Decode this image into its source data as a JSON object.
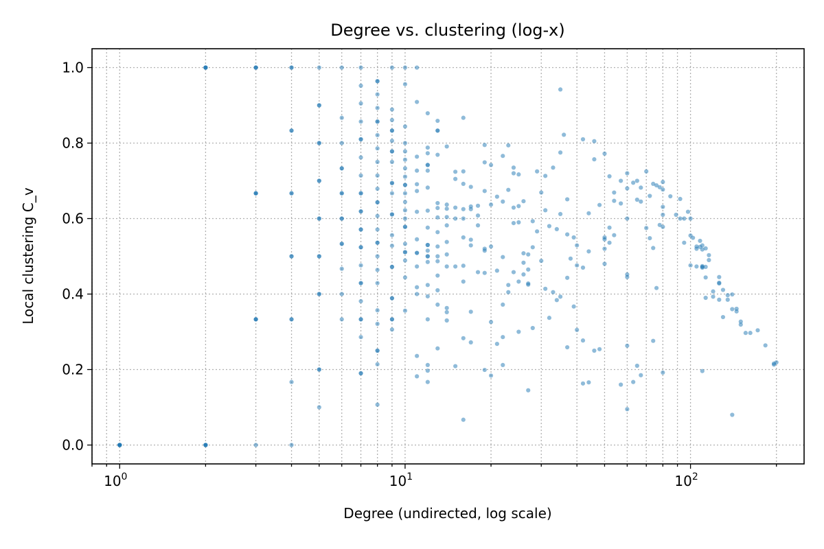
{
  "chart_data": {
    "type": "scatter",
    "title": "Degree vs. clustering (log-x)",
    "xlabel": "Degree (undirected, log scale)",
    "ylabel": "Local clustering C_v",
    "x_scale": "log",
    "xlim": [
      0.8,
      250
    ],
    "ylim": [
      -0.05,
      1.05
    ],
    "x_ticks": [
      {
        "base": "10",
        "exp": "0",
        "value": 1
      },
      {
        "base": "10",
        "exp": "1",
        "value": 10
      },
      {
        "base": "10",
        "exp": "2",
        "value": 100
      }
    ],
    "y_ticks": [
      "0.0",
      "0.2",
      "0.4",
      "0.6",
      "0.8",
      "1.0"
    ],
    "grid": true,
    "marker_color": "#1f77b4",
    "marker_alpha": 0.5,
    "points": [
      [
        1,
        0
      ],
      [
        1,
        0
      ],
      [
        1,
        0
      ],
      [
        1,
        0
      ],
      [
        1,
        0
      ],
      [
        1,
        0
      ],
      [
        2,
        0
      ],
      [
        2,
        0
      ],
      [
        2,
        0
      ],
      [
        2,
        0
      ],
      [
        2,
        1
      ],
      [
        2,
        1
      ],
      [
        2,
        1
      ],
      [
        2,
        1
      ],
      [
        3,
        0
      ],
      [
        3,
        0.333
      ],
      [
        3,
        0.333
      ],
      [
        3,
        0.333
      ],
      [
        3,
        0.667
      ],
      [
        3,
        0.667
      ],
      [
        3,
        0.667
      ],
      [
        3,
        1
      ],
      [
        3,
        1
      ],
      [
        3,
        1
      ],
      [
        4,
        0
      ],
      [
        4,
        0.167
      ],
      [
        4,
        0.333
      ],
      [
        4,
        0.333
      ],
      [
        4,
        0.5
      ],
      [
        4,
        0.5
      ],
      [
        4,
        0.667
      ],
      [
        4,
        0.667
      ],
      [
        4,
        0.833
      ],
      [
        4,
        0.833
      ],
      [
        4,
        1
      ],
      [
        4,
        1
      ],
      [
        5,
        0.1
      ],
      [
        5,
        0.2
      ],
      [
        5,
        0.2
      ],
      [
        5,
        0.4
      ],
      [
        5,
        0.4
      ],
      [
        5,
        0.5
      ],
      [
        5,
        0.5
      ],
      [
        5,
        0.6
      ],
      [
        5,
        0.6
      ],
      [
        5,
        0.7
      ],
      [
        5,
        0.7
      ],
      [
        5,
        0.8
      ],
      [
        5,
        0.8
      ],
      [
        5,
        0.9
      ],
      [
        5,
        0.9
      ],
      [
        5,
        1
      ],
      [
        6,
        0.333
      ],
      [
        6,
        0.4
      ],
      [
        6,
        0.467
      ],
      [
        6,
        0.533
      ],
      [
        6,
        0.533
      ],
      [
        6,
        0.6
      ],
      [
        6,
        0.6
      ],
      [
        6,
        0.667
      ],
      [
        6,
        0.667
      ],
      [
        6,
        0.733
      ],
      [
        6,
        0.733
      ],
      [
        6,
        0.8
      ],
      [
        6,
        0.867
      ],
      [
        6,
        1
      ],
      [
        7,
        0.19
      ],
      [
        7,
        0.19
      ],
      [
        7,
        0.286
      ],
      [
        7,
        0.333
      ],
      [
        7,
        0.333
      ],
      [
        7,
        0.381
      ],
      [
        7,
        0.429
      ],
      [
        7,
        0.429
      ],
      [
        7,
        0.476
      ],
      [
        7,
        0.524
      ],
      [
        7,
        0.524
      ],
      [
        7,
        0.571
      ],
      [
        7,
        0.571
      ],
      [
        7,
        0.619
      ],
      [
        7,
        0.619
      ],
      [
        7,
        0.667
      ],
      [
        7,
        0.667
      ],
      [
        7,
        0.714
      ],
      [
        7,
        0.762
      ],
      [
        7,
        0.81
      ],
      [
        7,
        0.81
      ],
      [
        7,
        0.857
      ],
      [
        7,
        0.905
      ],
      [
        7,
        0.952
      ],
      [
        7,
        1
      ],
      [
        8,
        0.107
      ],
      [
        8,
        0.214
      ],
      [
        8,
        0.25
      ],
      [
        8,
        0.25
      ],
      [
        8,
        0.321
      ],
      [
        8,
        0.357
      ],
      [
        8,
        0.429
      ],
      [
        8,
        0.464
      ],
      [
        8,
        0.5
      ],
      [
        8,
        0.536
      ],
      [
        8,
        0.536
      ],
      [
        8,
        0.571
      ],
      [
        8,
        0.607
      ],
      [
        8,
        0.643
      ],
      [
        8,
        0.643
      ],
      [
        8,
        0.679
      ],
      [
        8,
        0.714
      ],
      [
        8,
        0.75
      ],
      [
        8,
        0.786
      ],
      [
        8,
        0.821
      ],
      [
        8,
        0.857
      ],
      [
        8,
        0.857
      ],
      [
        8,
        0.893
      ],
      [
        8,
        0.929
      ],
      [
        8,
        0.964
      ],
      [
        8,
        0.964
      ],
      [
        9,
        0.306
      ],
      [
        9,
        0.333
      ],
      [
        9,
        0.333
      ],
      [
        9,
        0.389
      ],
      [
        9,
        0.389
      ],
      [
        9,
        0.472
      ],
      [
        9,
        0.472
      ],
      [
        9,
        0.528
      ],
      [
        9,
        0.556
      ],
      [
        9,
        0.611
      ],
      [
        9,
        0.611
      ],
      [
        9,
        0.667
      ],
      [
        9,
        0.694
      ],
      [
        9,
        0.694
      ],
      [
        9,
        0.75
      ],
      [
        9,
        0.778
      ],
      [
        9,
        0.778
      ],
      [
        9,
        0.806
      ],
      [
        9,
        0.833
      ],
      [
        9,
        0.833
      ],
      [
        9,
        0.861
      ],
      [
        9,
        0.889
      ],
      [
        9,
        1
      ],
      [
        10,
        0.356
      ],
      [
        10,
        0.444
      ],
      [
        10,
        0.489
      ],
      [
        10,
        0.511
      ],
      [
        10,
        0.511
      ],
      [
        10,
        0.533
      ],
      [
        10,
        0.578
      ],
      [
        10,
        0.578
      ],
      [
        10,
        0.6
      ],
      [
        10,
        0.622
      ],
      [
        10,
        0.644
      ],
      [
        10,
        0.667
      ],
      [
        10,
        0.689
      ],
      [
        10,
        0.689
      ],
      [
        10,
        0.711
      ],
      [
        10,
        0.733
      ],
      [
        10,
        0.756
      ],
      [
        10,
        0.778
      ],
      [
        10,
        0.8
      ],
      [
        10,
        0.844
      ],
      [
        10,
        0.956
      ],
      [
        10,
        1
      ],
      [
        11,
        0.182
      ],
      [
        11,
        0.236
      ],
      [
        11,
        0.4
      ],
      [
        11,
        0.418
      ],
      [
        11,
        0.473
      ],
      [
        11,
        0.509
      ],
      [
        11,
        0.509
      ],
      [
        11,
        0.545
      ],
      [
        11,
        0.618
      ],
      [
        11,
        0.673
      ],
      [
        11,
        0.691
      ],
      [
        11,
        0.727
      ],
      [
        11,
        0.764
      ],
      [
        11,
        0.909
      ],
      [
        11,
        1
      ],
      [
        12,
        0.167
      ],
      [
        12,
        0.197
      ],
      [
        12,
        0.212
      ],
      [
        12,
        0.333
      ],
      [
        12,
        0.394
      ],
      [
        12,
        0.424
      ],
      [
        12,
        0.485
      ],
      [
        12,
        0.5
      ],
      [
        12,
        0.5
      ],
      [
        12,
        0.515
      ],
      [
        12,
        0.53
      ],
      [
        12,
        0.53
      ],
      [
        12,
        0.576
      ],
      [
        12,
        0.621
      ],
      [
        12,
        0.682
      ],
      [
        12,
        0.727
      ],
      [
        12,
        0.742
      ],
      [
        12,
        0.742
      ],
      [
        12,
        0.773
      ],
      [
        12,
        0.788
      ],
      [
        12,
        0.879
      ],
      [
        13,
        0.256
      ],
      [
        13,
        0.372
      ],
      [
        13,
        0.41
      ],
      [
        13,
        0.449
      ],
      [
        13,
        0.487
      ],
      [
        13,
        0.5
      ],
      [
        13,
        0.526
      ],
      [
        13,
        0.564
      ],
      [
        13,
        0.603
      ],
      [
        13,
        0.628
      ],
      [
        13,
        0.641
      ],
      [
        13,
        0.769
      ],
      [
        13,
        0.833
      ],
      [
        13,
        0.833
      ],
      [
        13,
        0.859
      ],
      [
        14,
        0.33
      ],
      [
        14,
        0.352
      ],
      [
        14,
        0.363
      ],
      [
        14,
        0.473
      ],
      [
        14,
        0.505
      ],
      [
        14,
        0.538
      ],
      [
        14,
        0.582
      ],
      [
        14,
        0.604
      ],
      [
        14,
        0.626
      ],
      [
        14,
        0.637
      ],
      [
        14,
        0.791
      ],
      [
        15,
        0.209
      ],
      [
        15,
        0.473
      ],
      [
        15,
        0.6
      ],
      [
        15,
        0.629
      ],
      [
        15,
        0.705
      ],
      [
        15,
        0.724
      ],
      [
        16,
        0.067
      ],
      [
        16,
        0.283
      ],
      [
        16,
        0.433
      ],
      [
        16,
        0.475
      ],
      [
        16,
        0.55
      ],
      [
        16,
        0.6
      ],
      [
        16,
        0.625
      ],
      [
        16,
        0.692
      ],
      [
        16,
        0.725
      ],
      [
        16,
        0.867
      ],
      [
        17,
        0.272
      ],
      [
        17,
        0.353
      ],
      [
        17,
        0.529
      ],
      [
        17,
        0.544
      ],
      [
        17,
        0.632
      ],
      [
        17,
        0.625
      ],
      [
        17,
        0.684
      ],
      [
        18,
        0.458
      ],
      [
        18,
        0.582
      ],
      [
        18,
        0.608
      ],
      [
        18,
        0.634
      ],
      [
        19,
        0.199
      ],
      [
        19,
        0.456
      ],
      [
        19,
        0.515
      ],
      [
        19,
        0.52
      ],
      [
        19,
        0.673
      ],
      [
        19,
        0.749
      ],
      [
        19,
        0.795
      ],
      [
        20,
        0.184
      ],
      [
        20,
        0.326
      ],
      [
        20,
        0.526
      ],
      [
        20,
        0.637
      ],
      [
        20,
        0.742
      ],
      [
        21,
        0.268
      ],
      [
        21,
        0.462
      ],
      [
        21,
        0.658
      ],
      [
        22,
        0.212
      ],
      [
        22,
        0.286
      ],
      [
        22,
        0.372
      ],
      [
        22,
        0.498
      ],
      [
        22,
        0.645
      ],
      [
        22,
        0.766
      ],
      [
        23,
        0.405
      ],
      [
        23,
        0.424
      ],
      [
        23,
        0.676
      ],
      [
        23,
        0.794
      ],
      [
        24,
        0.458
      ],
      [
        24,
        0.588
      ],
      [
        24,
        0.629
      ],
      [
        24,
        0.735
      ],
      [
        24,
        0.72
      ],
      [
        25,
        0.3
      ],
      [
        25,
        0.433
      ],
      [
        25,
        0.633
      ],
      [
        25,
        0.59
      ],
      [
        25,
        0.717
      ],
      [
        26,
        0.452
      ],
      [
        26,
        0.483
      ],
      [
        26,
        0.508
      ],
      [
        26,
        0.646
      ],
      [
        27,
        0.145
      ],
      [
        27,
        0.425
      ],
      [
        27,
        0.428
      ],
      [
        27,
        0.465
      ],
      [
        27,
        0.505
      ],
      [
        28,
        0.31
      ],
      [
        28,
        0.524
      ],
      [
        28,
        0.593
      ],
      [
        29,
        0.566
      ],
      [
        29,
        0.725
      ],
      [
        30,
        0.488
      ],
      [
        30,
        0.669
      ],
      [
        31,
        0.414
      ],
      [
        31,
        0.622
      ],
      [
        31,
        0.713
      ],
      [
        32,
        0.337
      ],
      [
        32,
        0.58
      ],
      [
        33,
        0.405
      ],
      [
        33,
        0.735
      ],
      [
        34,
        0.384
      ],
      [
        34,
        0.572
      ],
      [
        35,
        0.942
      ],
      [
        35,
        0.393
      ],
      [
        35,
        0.612
      ],
      [
        35,
        0.775
      ],
      [
        36,
        0.822
      ],
      [
        37,
        0.259
      ],
      [
        37,
        0.443
      ],
      [
        37,
        0.558
      ],
      [
        37,
        0.651
      ],
      [
        38,
        0.494
      ],
      [
        39,
        0.55
      ],
      [
        39,
        0.367
      ],
      [
        40,
        0.305
      ],
      [
        40,
        0.476
      ],
      [
        40,
        0.529
      ],
      [
        42,
        0.163
      ],
      [
        42,
        0.277
      ],
      [
        42,
        0.47
      ],
      [
        42,
        0.81
      ],
      [
        44,
        0.166
      ],
      [
        44,
        0.513
      ],
      [
        44,
        0.614
      ],
      [
        46,
        0.25
      ],
      [
        46,
        0.757
      ],
      [
        46,
        0.805
      ],
      [
        48,
        0.254
      ],
      [
        48,
        0.636
      ],
      [
        50,
        0.48
      ],
      [
        50,
        0.52
      ],
      [
        50,
        0.545
      ],
      [
        50,
        0.55
      ],
      [
        50,
        0.772
      ],
      [
        52,
        0.536
      ],
      [
        52,
        0.576
      ],
      [
        52,
        0.712
      ],
      [
        54,
        0.669
      ],
      [
        54,
        0.556
      ],
      [
        54,
        0.647
      ],
      [
        57,
        0.16
      ],
      [
        57,
        0.64
      ],
      [
        57,
        0.7
      ],
      [
        60,
        0.095
      ],
      [
        60,
        0.263
      ],
      [
        60,
        0.445
      ],
      [
        60,
        0.452
      ],
      [
        60,
        0.6
      ],
      [
        60,
        0.68
      ],
      [
        60,
        0.72
      ],
      [
        63,
        0.167
      ],
      [
        63,
        0.695
      ],
      [
        65,
        0.21
      ],
      [
        65,
        0.65
      ],
      [
        65,
        0.7
      ],
      [
        67,
        0.185
      ],
      [
        67,
        0.645
      ],
      [
        67,
        0.682
      ],
      [
        70,
        0.575
      ],
      [
        70,
        0.725
      ],
      [
        72,
        0.548
      ],
      [
        72,
        0.66
      ],
      [
        74,
        0.276
      ],
      [
        74,
        0.522
      ],
      [
        74,
        0.692
      ],
      [
        76,
        0.416
      ],
      [
        76,
        0.688
      ],
      [
        78,
        0.583
      ],
      [
        78,
        0.683
      ],
      [
        80,
        0.192
      ],
      [
        80,
        0.578
      ],
      [
        80,
        0.61
      ],
      [
        80,
        0.631
      ],
      [
        80,
        0.677
      ],
      [
        80,
        0.697
      ],
      [
        85,
        0.659
      ],
      [
        89,
        0.61
      ],
      [
        92,
        0.652
      ],
      [
        92,
        0.6
      ],
      [
        95,
        0.536
      ],
      [
        95,
        0.6
      ],
      [
        98,
        0.618
      ],
      [
        100,
        0.476
      ],
      [
        100,
        0.555
      ],
      [
        100,
        0.6
      ],
      [
        102,
        0.549
      ],
      [
        105,
        0.473
      ],
      [
        105,
        0.52
      ],
      [
        105,
        0.526
      ],
      [
        108,
        0.525
      ],
      [
        108,
        0.541
      ],
      [
        110,
        0.196
      ],
      [
        110,
        0.47
      ],
      [
        110,
        0.472
      ],
      [
        110,
        0.474
      ],
      [
        110,
        0.518
      ],
      [
        110,
        0.529
      ],
      [
        113,
        0.39
      ],
      [
        113,
        0.444
      ],
      [
        113,
        0.472
      ],
      [
        113,
        0.521
      ],
      [
        116,
        0.49
      ],
      [
        116,
        0.503
      ],
      [
        120,
        0.393
      ],
      [
        120,
        0.407
      ],
      [
        126,
        0.385
      ],
      [
        126,
        0.428
      ],
      [
        126,
        0.43
      ],
      [
        126,
        0.445
      ],
      [
        130,
        0.339
      ],
      [
        130,
        0.411
      ],
      [
        135,
        0.385
      ],
      [
        135,
        0.397
      ],
      [
        140,
        0.08
      ],
      [
        140,
        0.36
      ],
      [
        140,
        0.399
      ],
      [
        145,
        0.354
      ],
      [
        145,
        0.361
      ],
      [
        150,
        0.327
      ],
      [
        150,
        0.319
      ],
      [
        156,
        0.297
      ],
      [
        162,
        0.297
      ],
      [
        172,
        0.304
      ],
      [
        183,
        0.264
      ],
      [
        196,
        0.213
      ],
      [
        196,
        0.216
      ],
      [
        200,
        0.219
      ]
    ]
  }
}
